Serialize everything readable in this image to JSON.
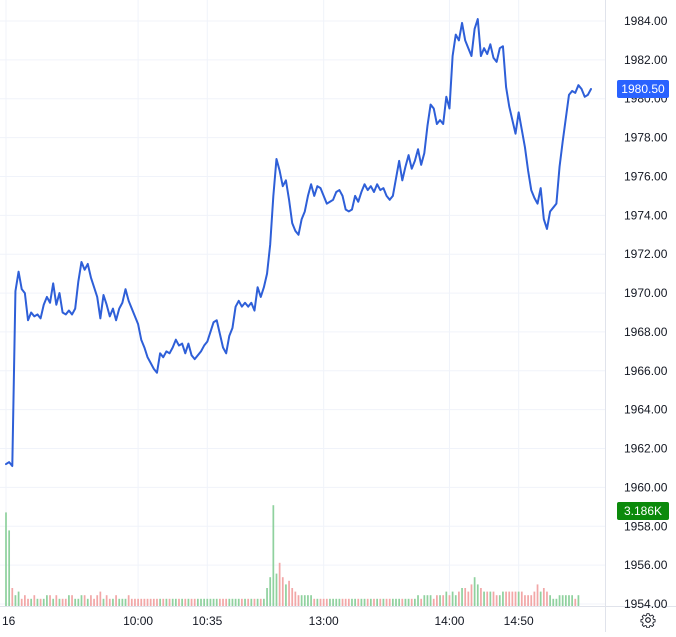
{
  "chart_data": {
    "type": "line",
    "instrument_context": "intraday price with volume",
    "y_axis": {
      "min": 1954,
      "max": 1985,
      "ticks": [
        "1984.00",
        "1982.00",
        "1980.00",
        "1978.00",
        "1976.00",
        "1974.00",
        "1972.00",
        "1970.00",
        "1968.00",
        "1966.00",
        "1964.00",
        "1962.00",
        "1960.00",
        "1958.00",
        "1956.00",
        "1954.00"
      ],
      "tick_values": [
        1984,
        1982,
        1980,
        1978,
        1976,
        1974,
        1972,
        1970,
        1968,
        1966,
        1964,
        1962,
        1960,
        1958,
        1956,
        1954
      ]
    },
    "x_axis": {
      "ticks": [
        "16",
        "10:00",
        "10:35",
        "13:00",
        "14:00",
        "14:50"
      ],
      "tick_index": [
        0,
        42,
        64,
        101,
        141,
        163
      ]
    },
    "price_badge": {
      "label": "1980.50",
      "value": 1980.5,
      "color": "#2962ff"
    },
    "volume_badge": {
      "label": "3.186K",
      "color": "#0b8a0b"
    },
    "line_color": "#2e5fd8",
    "volume_up_color": "#8fd19e",
    "volume_down_color": "#f2a7a7",
    "series": [
      {
        "name": "price",
        "values": [
          1961.2,
          1961.3,
          1961.1,
          1970.1,
          1971.1,
          1970.2,
          1970.0,
          1968.6,
          1969.0,
          1968.8,
          1968.9,
          1968.7,
          1969.4,
          1969.8,
          1969.5,
          1970.5,
          1969.4,
          1970.0,
          1969.0,
          1968.9,
          1969.1,
          1968.9,
          1969.2,
          1970.6,
          1971.6,
          1971.2,
          1971.5,
          1970.8,
          1970.3,
          1969.8,
          1968.7,
          1969.9,
          1969.4,
          1968.8,
          1969.2,
          1968.6,
          1969.2,
          1969.5,
          1970.2,
          1969.6,
          1969.2,
          1968.8,
          1968.4,
          1967.6,
          1967.2,
          1966.7,
          1966.4,
          1966.1,
          1965.9,
          1966.9,
          1966.7,
          1967.0,
          1966.9,
          1967.2,
          1967.6,
          1967.3,
          1967.4,
          1966.9,
          1967.4,
          1966.8,
          1966.6,
          1966.8,
          1967.0,
          1967.3,
          1967.5,
          1968.0,
          1968.5,
          1968.6,
          1967.9,
          1967.2,
          1966.9,
          1967.8,
          1968.2,
          1969.3,
          1969.6,
          1969.3,
          1969.5,
          1969.3,
          1969.5,
          1969.1,
          1970.3,
          1969.8,
          1970.3,
          1971.0,
          1972.5,
          1975.0,
          1976.9,
          1976.3,
          1975.5,
          1975.8,
          1974.8,
          1973.6,
          1973.2,
          1973.0,
          1973.8,
          1974.2,
          1975.0,
          1975.6,
          1975.0,
          1975.5,
          1975.4,
          1975.0,
          1974.6,
          1974.7,
          1974.8,
          1975.2,
          1975.3,
          1975.0,
          1974.3,
          1974.2,
          1974.3,
          1975.0,
          1974.7,
          1975.2,
          1975.6,
          1975.3,
          1975.5,
          1975.2,
          1975.6,
          1975.3,
          1975.4,
          1975.0,
          1974.8,
          1975.0,
          1975.9,
          1976.8,
          1975.8,
          1976.5,
          1977.1,
          1976.4,
          1976.8,
          1977.4,
          1976.6,
          1977.2,
          1978.6,
          1979.7,
          1979.5,
          1978.7,
          1978.9,
          1978.7,
          1980.1,
          1979.5,
          1982.2,
          1983.3,
          1983.0,
          1983.9,
          1983.0,
          1982.6,
          1982.2,
          1983.6,
          1984.1,
          1982.2,
          1982.6,
          1982.3,
          1982.8,
          1982.1,
          1981.9,
          1982.6,
          1982.7,
          1980.6,
          1979.6,
          1978.9,
          1978.2,
          1979.3,
          1978.4,
          1977.5,
          1976.3,
          1975.3,
          1974.9,
          1974.6,
          1975.4,
          1973.8,
          1973.3,
          1974.2,
          1974.4,
          1974.6,
          1976.5,
          1977.8,
          1979.0,
          1980.2,
          1980.4,
          1980.3,
          1980.7,
          1980.5,
          1980.1,
          1980.2,
          1980.5
        ]
      },
      {
        "name": "volume",
        "values": [
          2.6,
          2.1,
          0.5,
          0.3,
          0.4,
          0.2,
          0.3,
          0.2,
          0.2,
          0.3,
          0.2,
          0.2,
          0.2,
          0.3,
          0.3,
          0.2,
          0.3,
          0.2,
          0.2,
          0.2,
          0.3,
          0.3,
          0.2,
          0.2,
          0.3,
          0.3,
          0.2,
          0.3,
          0.2,
          0.3,
          0.4,
          0.2,
          0.3,
          0.2,
          0.2,
          0.3,
          0.2,
          0.2,
          0.2,
          0.3,
          0.2,
          0.2,
          0.2,
          0.2,
          0.2,
          0.2,
          0.2,
          0.2,
          0.2,
          0.2,
          0.2,
          0.2,
          0.2,
          0.2,
          0.2,
          0.2,
          0.2,
          0.2,
          0.2,
          0.2,
          0.2,
          0.2,
          0.2,
          0.2,
          0.2,
          0.2,
          0.2,
          0.2,
          0.2,
          0.2,
          0.2,
          0.2,
          0.2,
          0.2,
          0.2,
          0.2,
          0.2,
          0.2,
          0.2,
          0.2,
          0.2,
          0.2,
          0.2,
          0.5,
          0.8,
          2.8,
          0.9,
          1.2,
          0.8,
          0.6,
          0.7,
          0.5,
          0.4,
          0.3,
          0.3,
          0.3,
          0.3,
          0.3,
          0.2,
          0.2,
          0.2,
          0.2,
          0.2,
          0.2,
          0.2,
          0.2,
          0.2,
          0.2,
          0.2,
          0.2,
          0.2,
          0.2,
          0.2,
          0.2,
          0.2,
          0.2,
          0.2,
          0.2,
          0.2,
          0.2,
          0.2,
          0.2,
          0.2,
          0.2,
          0.2,
          0.2,
          0.2,
          0.2,
          0.2,
          0.2,
          0.2,
          0.3,
          0.2,
          0.3,
          0.3,
          0.3,
          0.2,
          0.3,
          0.3,
          0.3,
          0.4,
          0.3,
          0.4,
          0.3,
          0.4,
          0.5,
          0.5,
          0.4,
          0.6,
          0.8,
          0.6,
          0.5,
          0.4,
          0.4,
          0.4,
          0.4,
          0.3,
          0.3,
          0.4,
          0.4,
          0.4,
          0.4,
          0.4,
          0.4,
          0.4,
          0.3,
          0.3,
          0.3,
          0.4,
          0.6,
          0.4,
          0.5,
          0.4,
          0.3,
          0.2,
          0.2,
          0.3,
          0.3,
          0.3,
          0.3,
          0.3,
          0.2,
          0.3
        ]
      }
    ]
  },
  "icons": {
    "settings": "gear-icon"
  }
}
